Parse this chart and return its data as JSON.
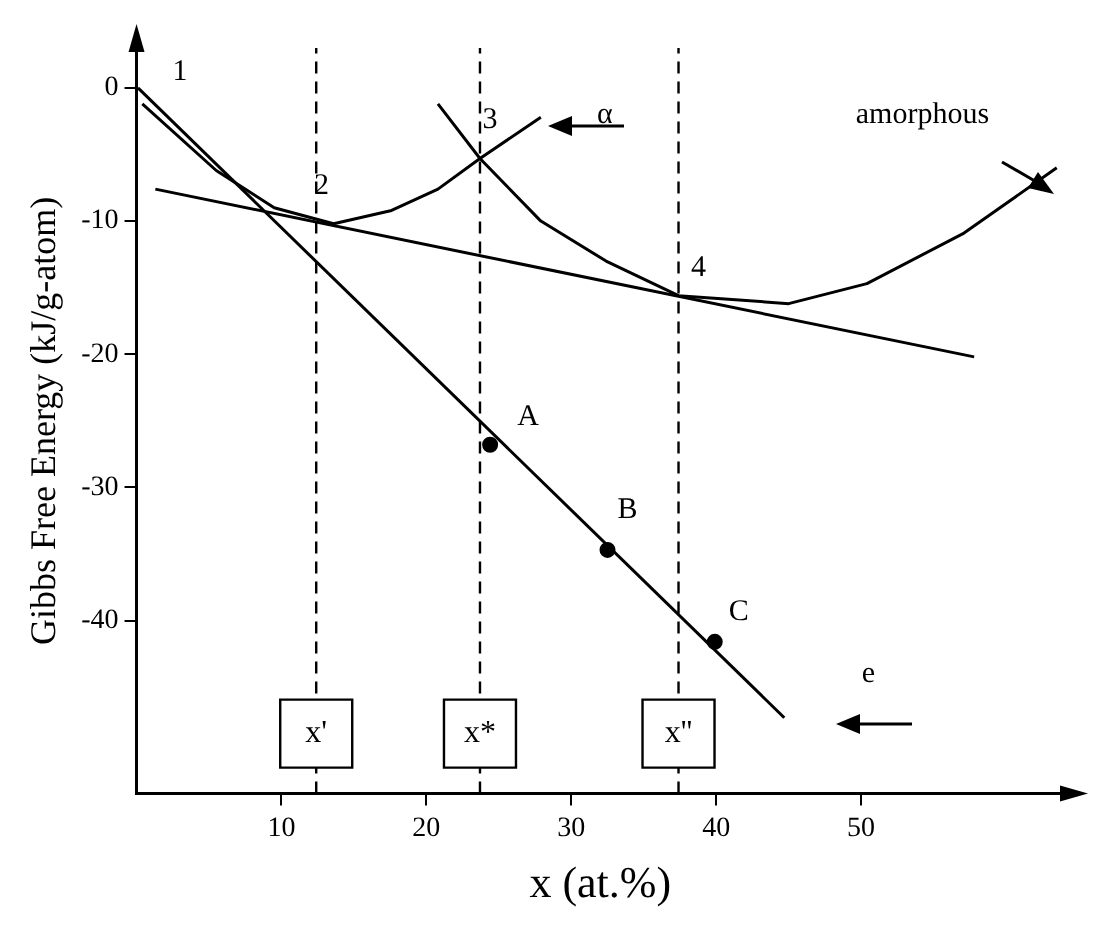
{
  "chart_data": {
    "type": "line",
    "xlabel": "x (at.%)",
    "ylabel": "Gibbs Free Energy (kJ/g-atom)",
    "xlim": [
      0,
      64
    ],
    "ylim": [
      -53,
      3
    ],
    "xticks": [
      10,
      20,
      30,
      40,
      50
    ],
    "yticks": [
      0,
      -10,
      -20,
      -30,
      -40
    ],
    "grid": false,
    "legend": false,
    "series": [
      {
        "color": "#000000",
        "x": [
          0.4,
          5.5,
          9.5,
          13.6,
          17.6,
          20.8,
          23.7,
          27.9
        ],
        "values": [
          -1.2,
          -6.2,
          -9.0,
          -10.2,
          -9.2,
          -7.6,
          -5.3,
          -2.2
        ]
      },
      {
        "color": "#000000",
        "x": [
          20.8,
          23.7,
          27.9,
          32.4,
          37.4,
          45.0,
          50.4,
          57.1,
          63.5
        ],
        "values": [
          -1.2,
          -5.3,
          -10.0,
          -13.0,
          -15.6,
          -16.2,
          -14.7,
          -10.9,
          -6.0
        ]
      },
      {
        "color": "#000000",
        "x": [
          1.3,
          57.8
        ],
        "values": [
          -7.6,
          -20.2
        ]
      },
      {
        "color": "#000000",
        "x": [
          0.1,
          44.7
        ],
        "values": [
          0,
          -47.3
        ]
      },
      {
        "type": "scatter",
        "color": "#000000",
        "marker": "circle",
        "x": [
          24.4,
          32.5,
          39.9
        ],
        "values": [
          -26.8,
          -34.7,
          -41.6
        ]
      }
    ],
    "ref_lines": [
      {
        "axis": "x",
        "value": 12.4,
        "label": "x'",
        "line_style": "dashed"
      },
      {
        "axis": "x",
        "value": 23.7,
        "label": "x*",
        "line_style": "dashed"
      },
      {
        "axis": "x",
        "value": 37.4,
        "label": "x''",
        "line_style": "dashed"
      }
    ],
    "annotations": [
      {
        "text": "1",
        "x": 0.1,
        "y": 0
      },
      {
        "text": "2",
        "x": 13.6,
        "y": -10.2
      },
      {
        "text": "3",
        "x": 23.7,
        "y": -5.3
      },
      {
        "text": "4",
        "x": 37.4,
        "y": -15.6
      },
      {
        "text": "A",
        "x": 24.4,
        "y": -26.8
      },
      {
        "text": "B",
        "x": 32.5,
        "y": -34.7
      },
      {
        "text": "C",
        "x": 39.9,
        "y": -41.6
      },
      {
        "text": "α",
        "x": 27.9,
        "y": -2.2
      },
      {
        "text": "e",
        "x": 44.7,
        "y": -47.3
      },
      {
        "text": "amorphous",
        "x": 59.2,
        "y": -9.4
      }
    ]
  }
}
